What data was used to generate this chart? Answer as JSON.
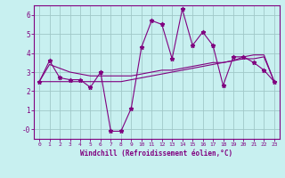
{
  "x": [
    0,
    1,
    2,
    3,
    4,
    5,
    6,
    7,
    8,
    9,
    10,
    11,
    12,
    13,
    14,
    15,
    16,
    17,
    18,
    19,
    20,
    21,
    22,
    23
  ],
  "y_line": [
    2.5,
    3.6,
    2.7,
    2.6,
    2.6,
    2.2,
    3.0,
    -0.1,
    -0.1,
    1.1,
    4.3,
    5.7,
    5.5,
    3.7,
    6.3,
    4.4,
    5.1,
    4.4,
    2.3,
    3.8,
    3.8,
    3.5,
    3.1,
    2.5
  ],
  "y_trend1": [
    2.5,
    3.4,
    3.2,
    3.0,
    2.9,
    2.8,
    2.8,
    2.8,
    2.8,
    2.8,
    2.9,
    3.0,
    3.1,
    3.1,
    3.2,
    3.3,
    3.4,
    3.5,
    3.5,
    3.6,
    3.7,
    3.7,
    3.8,
    2.5
  ],
  "y_trend2": [
    2.5,
    2.5,
    2.5,
    2.5,
    2.5,
    2.5,
    2.5,
    2.5,
    2.5,
    2.6,
    2.7,
    2.8,
    2.9,
    3.0,
    3.1,
    3.2,
    3.3,
    3.4,
    3.5,
    3.6,
    3.8,
    3.9,
    3.9,
    2.5
  ],
  "line_color": "#800080",
  "bg_color": "#c8f0f0",
  "grid_color": "#a0c8c8",
  "axis_color": "#800080",
  "xlabel": "Windchill (Refroidissement éolien,°C)",
  "ylim": [
    -0.5,
    6.5
  ],
  "xlim": [
    -0.5,
    23.5
  ],
  "yticks": [
    0,
    1,
    2,
    3,
    4,
    5,
    6
  ],
  "xticks": [
    0,
    1,
    2,
    3,
    4,
    5,
    6,
    7,
    8,
    9,
    10,
    11,
    12,
    13,
    14,
    15,
    16,
    17,
    18,
    19,
    20,
    21,
    22,
    23
  ],
  "ytick_labels": [
    "-0",
    "1",
    "2",
    "3",
    "4",
    "5",
    "6"
  ],
  "xtick_labels": [
    "0",
    "1",
    "2",
    "3",
    "4",
    "5",
    "6",
    "7",
    "8",
    "9",
    "10",
    "11",
    "12",
    "13",
    "14",
    "15",
    "16",
    "17",
    "18",
    "19",
    "20",
    "21",
    "22",
    "23"
  ]
}
